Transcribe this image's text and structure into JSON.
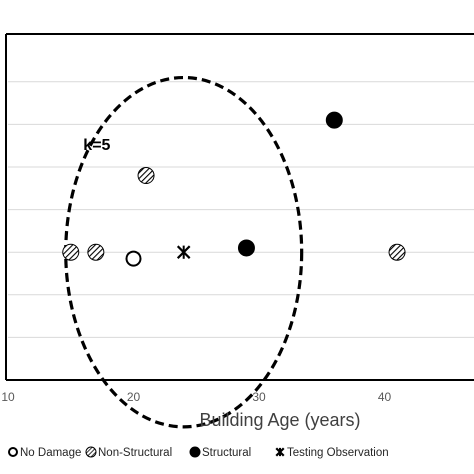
{
  "chart_data": {
    "type": "scatter",
    "xlabel": "Building Age (years)",
    "ylabel": "",
    "xlim": [
      10,
      45
    ],
    "x_ticks": [
      10,
      20,
      30,
      40
    ],
    "ylim": [
      0,
      8
    ],
    "y_gridlines": [
      1,
      2,
      3,
      4,
      5,
      6,
      7
    ],
    "grid": "horizontal",
    "legend_position": "bottom",
    "series": [
      {
        "name": "No Damage",
        "marker": "open-circle",
        "points": [
          {
            "x": 20,
            "y": 2.85
          }
        ]
      },
      {
        "name": "Non-Structural",
        "marker": "hatched-circle",
        "points": [
          {
            "x": 15,
            "y": 3.0
          },
          {
            "x": 17,
            "y": 3.0
          },
          {
            "x": 21,
            "y": 4.8
          },
          {
            "x": 41,
            "y": 3.0
          }
        ]
      },
      {
        "name": "Structural",
        "marker": "filled-circle",
        "points": [
          {
            "x": 29,
            "y": 3.1
          },
          {
            "x": 36,
            "y": 6.1
          }
        ]
      },
      {
        "name": "Testing Observation",
        "marker": "star",
        "points": [
          {
            "x": 24,
            "y": 3.0
          }
        ]
      }
    ],
    "annotations": [
      {
        "text": "k=5",
        "x": 16,
        "y": 5.4
      }
    ],
    "neighbourhood_circle": {
      "center_x": 24,
      "center_y": 3.0,
      "radius_x": 9.4,
      "radius_y": 4.1
    }
  }
}
